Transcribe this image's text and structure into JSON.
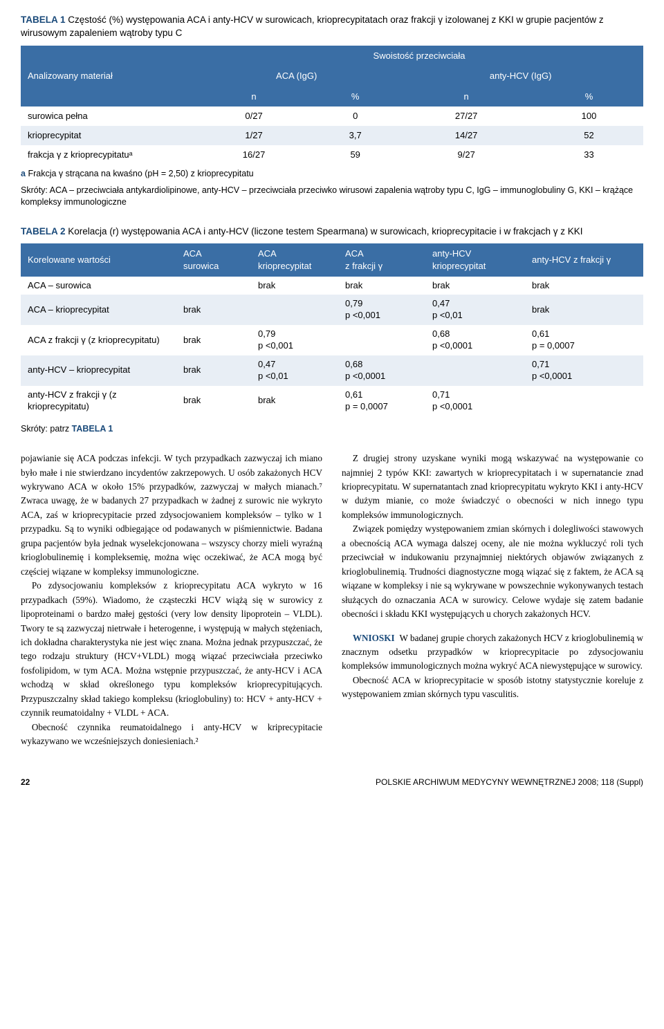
{
  "table1": {
    "label": "TABELA 1",
    "caption": "Częstość (%) występowania ACA i anty-HCV w surowicach, krioprecypitatach oraz frakcji γ izolowanej z KKI w grupie pacjentów z wirusowym zapaleniem wątroby typu C",
    "head": {
      "material": "Analizowany materiał",
      "swo": "Swoistość przeciwciała",
      "aca": "ACA (IgG)",
      "anty": "anty-HCV (IgG)",
      "n": "n",
      "pct": "%"
    },
    "rows": [
      {
        "name": "surowica pełna",
        "n1": "0/27",
        "p1": "0",
        "n2": "27/27",
        "p2": "100"
      },
      {
        "name": "krioprecypitat",
        "n1": "1/27",
        "p1": "3,7",
        "n2": "14/27",
        "p2": "52"
      },
      {
        "name": "frakcja γ z krioprecypitatuᵃ",
        "n1": "16/27",
        "p1": "59",
        "n2": "9/27",
        "p2": "33"
      }
    ],
    "footnote_a_key": "a",
    "footnote_a": "Frakcja γ strącana na kwaśno (pH = 2,50) z krioprecypitatu",
    "skroty": "Skróty: ACA – przeciwciała antykardiolipinowe, anty-HCV – przeciwciała przeciwko wirusowi zapalenia wątroby typu C, IgG – immunoglobuliny G, KKI – krążące kompleksy immunologiczne"
  },
  "table2": {
    "label": "TABELA 2",
    "caption": "Korelacja (r) występowania ACA i anty-HCV (liczone testem Spearmana) w surowicach, krioprecypitacie i w frakcjach γ z KKI",
    "head": {
      "kor": "Korelowane wartości",
      "c1a": "ACA",
      "c1b": "surowica",
      "c2a": "ACA",
      "c2b": "krioprecypitat",
      "c3a": "ACA",
      "c3b": "z frakcji γ",
      "c4a": "anty-HCV",
      "c4b": "krioprecypitat",
      "c5": "anty-HCV z frakcji γ"
    },
    "rows": [
      {
        "name": "ACA – surowica",
        "c1": "",
        "c2": "brak",
        "c3": "brak",
        "c4": "brak",
        "c5": "brak"
      },
      {
        "name": "ACA – krioprecypitat",
        "c1": "brak",
        "c2": "",
        "c3": "0,79\np <0,001",
        "c4": "0,47\np <0,01",
        "c5": "brak"
      },
      {
        "name": "ACA z frakcji γ (z krioprecypitatu)",
        "c1": "brak",
        "c2": "0,79\np <0,001",
        "c3": "",
        "c4": "0,68\np <0,0001",
        "c5": "0,61\np = 0,0007"
      },
      {
        "name": "anty-HCV – krioprecypitat",
        "c1": "brak",
        "c2": "0,47\np <0,01",
        "c3": "0,68\np <0,0001",
        "c4": "",
        "c5": "0,71\np <0,0001"
      },
      {
        "name": "anty-HCV z frakcji γ (z krioprecypitatu)",
        "c1": "brak",
        "c2": "brak",
        "c3": "0,61\np = 0,0007",
        "c4": "0,71\np <0,0001",
        "c5": ""
      }
    ],
    "skroty_label": "Skróty: patrz ",
    "skroty_ref": "TABELA 1"
  },
  "body": {
    "left": [
      "pojawianie się ACA podczas infekcji. W tych przypadkach zazwyczaj ich miano było małe i nie stwierdzano incydentów zakrzepowych. U osób zakażonych HCV wykrywano ACA w około 15% przypadków, zazwyczaj w małych mianach.⁷ Zwraca uwagę, że w badanych 27 przypadkach w żadnej z surowic nie wykryto ACA, zaś w krioprecypitacie przed zdysocjowaniem kompleksów – tylko w 1 przypadku. Są to wyniki odbiegające od podawanych w piśmiennictwie. Badana grupa pacjentów była jednak wyselekcjonowana – wszyscy chorzy mieli wyraźną krioglobulinemię i kompleksemię, można więc oczekiwać, że ACA mogą być częściej wiązane w kompleksy immunologiczne.",
      "Po zdysocjowaniu kompleksów z krioprecypitatu ACA wykryto w 16 przypadkach (59%). Wiadomo, że cząsteczki HCV wiążą się w surowicy z lipoproteinami o bardzo małej gęstości (very low density lipoprotein – VLDL). Twory te są zazwyczaj nietrwałe i heterogenne, i występują w małych stężeniach, ich dokładna charakterystyka nie jest więc znana. Można jednak przypuszczać, że tego rodzaju struktury (HCV+VLDL) mogą wiązać przeciwciała przeciwko fosfolipidom, w tym ACA. Można wstępnie przypuszczać, że anty-HCV i ACA wchodzą w skład określonego typu kompleksów krioprecypitujących. Przypuszczalny skład takiego kompleksu (krioglobuliny) to: HCV + anty-HCV + czynnik reumatoidalny + VLDL + ACA.",
      "Obecność czynnika reumatoidalnego i anty-HCV w kriprecypitacie wykazywano we wcześniejszych doniesieniach.²"
    ],
    "right_p1": "Z drugiej strony uzyskane wyniki mogą wskazywać na występowanie co najmniej 2 typów KKI: zawartych w krioprecypitatach i w supernatancie znad krioprecypitatu. W supernatantach znad krioprecypitatu wykryto KKI i anty-HCV w dużym mianie, co może świadczyć o obecności w nich innego typu kompleksów immunologicznych.",
    "right_p2": "Związek pomiędzy występowaniem zmian skórnych i dolegliwości stawowych a obecnością ACA wymaga dalszej oceny, ale nie można wykluczyć roli tych przeciwciał w indukowaniu przynajmniej niektórych objawów związanych z krioglobulinemią. Trudności diagnostyczne mogą wiązać się z faktem, że ACA są wiązane w kompleksy i nie są wykrywane w powszechnie wykonywanych testach służących do oznaczania ACA w surowicy. Celowe wydaje się zatem badanie obecności i składu KKI występujących u chorych zakażonych HCV.",
    "wnioski_label": "WNIOSKI",
    "wnioski_p1": "W badanej grupie chorych zakażonych HCV z krioglobulinemią w znacznym odsetku przypadków w krioprecypitacie po zdysocjowaniu kompleksów immunologicznych można wykryć ACA niewystępujące w surowicy.",
    "wnioski_p2": "Obecność ACA w krioprecypitacie w sposób istotny statystycznie koreluje z występowaniem zmian skórnych typu vasculitis."
  },
  "footer": {
    "page": "22",
    "journal": "POLSKIE ARCHIWUM MEDYCYNY WEWNĘTRZNEJ  2008; 118 (Suppl)"
  }
}
